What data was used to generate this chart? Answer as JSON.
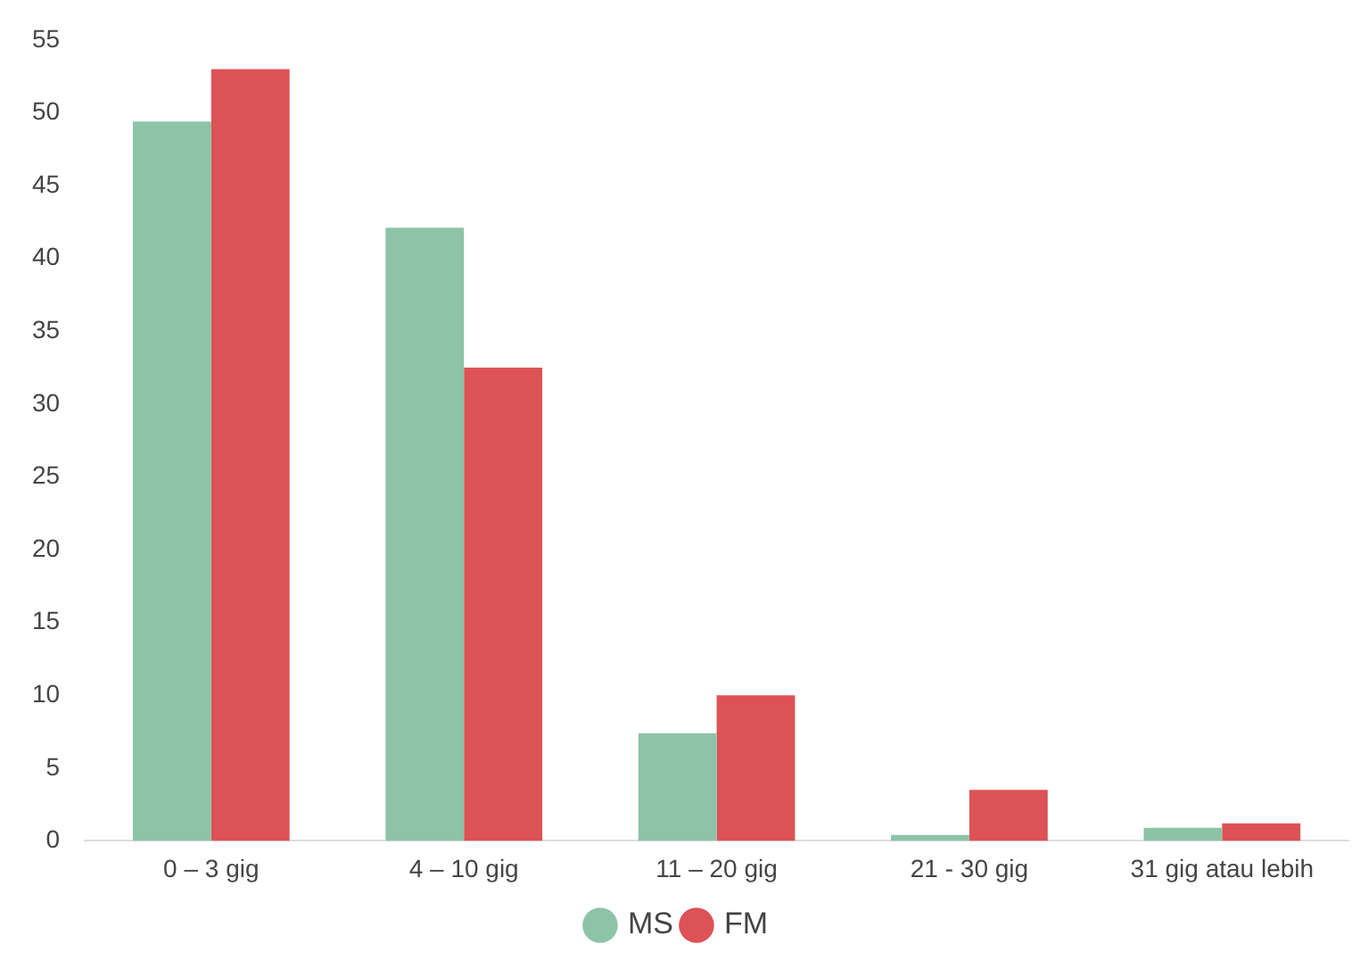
{
  "chart_data": {
    "type": "bar",
    "categories": [
      "0 – 3 gig",
      "4 – 10 gig",
      "11 – 20 gig",
      "21 - 30 gig",
      "31 gig atau lebih"
    ],
    "series": [
      {
        "name": "MS",
        "color": "#8dc3a7",
        "values": [
          49.4,
          42.1,
          7.4,
          0.4,
          0.9
        ]
      },
      {
        "name": "FM",
        "color": "#dc5256",
        "values": [
          53.0,
          32.5,
          10.0,
          3.5,
          1.2
        ]
      }
    ],
    "ylim": [
      0,
      55
    ],
    "yticks": [
      0,
      5,
      10,
      15,
      20,
      25,
      30,
      35,
      40,
      45,
      50,
      55
    ],
    "grid": false,
    "legend": "bottom"
  }
}
